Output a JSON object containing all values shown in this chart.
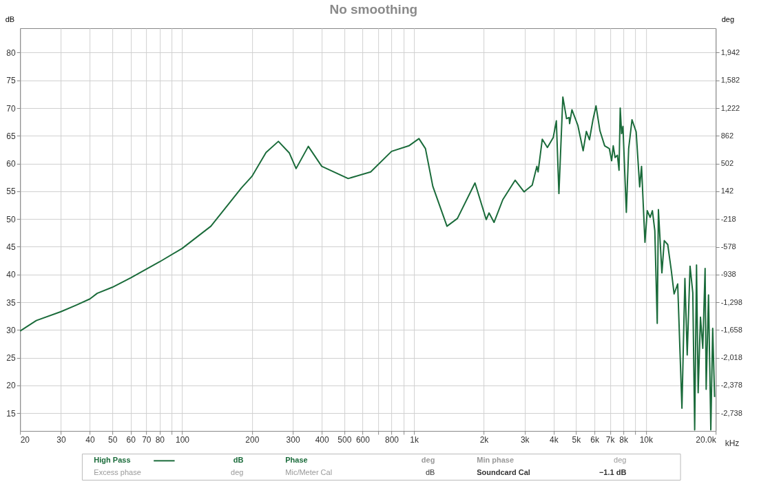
{
  "chart_data": {
    "type": "line",
    "title": "No smoothing",
    "ylabel": "dB",
    "y2label": "deg",
    "x": [
      20,
      23.5,
      30,
      35,
      40,
      43,
      50,
      60,
      80,
      100,
      133,
      180,
      200,
      230,
      260,
      290,
      310,
      350,
      400,
      520,
      650,
      800,
      950,
      1050,
      1120,
      1205,
      1387,
      1538,
      1832,
      2048,
      2106,
      2213,
      2415,
      2730,
      2982,
      3233,
      3385,
      3428,
      3574,
      3760,
      3984,
      4109,
      4215,
      4383,
      4547,
      4665,
      4687,
      4797,
      5086,
      5362,
      5535,
      5708,
      5911,
      6093,
      6336,
      6640,
      6953,
      7114,
      7229,
      7363,
      7536,
      7658,
      7748,
      7856,
      7960,
      8233,
      8426,
      8711,
      9078,
      9399,
      9575,
      9905,
      10135,
      10433,
      10665,
      10925,
      11190,
      11320,
      11720,
      12000,
      12420,
      12870,
      13230,
      13710,
      14300,
      14730,
      15070,
      15500,
      15930,
      16230,
      16530,
      16800,
      17190,
      17590,
      18000,
      18190,
      18620,
      19050,
      19410,
      19780
    ],
    "series": [
      {
        "name": "High Pass",
        "color": "#1a6b3a",
        "values": [
          29.8,
          31.7,
          33.3,
          34.5,
          35.6,
          36.6,
          37.7,
          39.4,
          42.3,
          44.7,
          48.7,
          55.6,
          57.7,
          62.0,
          64.0,
          61.9,
          59.1,
          63.1,
          59.5,
          57.3,
          58.5,
          62.2,
          63.2,
          64.5,
          62.7,
          55.9,
          48.7,
          50.1,
          56.5,
          49.9,
          51.1,
          49.4,
          53.5,
          57.0,
          54.9,
          56.1,
          59.5,
          58.5,
          64.4,
          62.9,
          64.7,
          67.7,
          54.6,
          72.0,
          68.1,
          68.3,
          67.2,
          69.7,
          66.9,
          62.3,
          65.8,
          64.3,
          67.9,
          70.4,
          65.9,
          63.2,
          62.7,
          60.5,
          63.2,
          61.1,
          61.5,
          58.8,
          70.0,
          65.4,
          66.7,
          51.2,
          62.7,
          67.9,
          65.7,
          55.8,
          59.5,
          45.8,
          51.5,
          50.3,
          51.5,
          47.9,
          31.2,
          51.7,
          40.3,
          46.1,
          45.4,
          40.7,
          36.5,
          38.3,
          15.9,
          39.3,
          25.5,
          41.5,
          36.7,
          12.0,
          41.7,
          18.7,
          32.3,
          26.7,
          41.1,
          19.3,
          36.3,
          12.0,
          30.3,
          17.9
        ]
      }
    ],
    "log": "x",
    "xlim": [
      20,
      20000
    ],
    "xticks": [
      20,
      30,
      40,
      50,
      60,
      70,
      80,
      {
        "value": 90,
        "label": null
      },
      100,
      200,
      300,
      400,
      500,
      600,
      {
        "value": 700,
        "label": null
      },
      800,
      {
        "value": 900,
        "label": null
      },
      {
        "value": 1000,
        "label": "1k"
      },
      {
        "value": 2000,
        "label": "2k"
      },
      {
        "value": 3000,
        "label": "3k"
      },
      {
        "value": 4000,
        "label": "4k"
      },
      {
        "value": 5000,
        "label": "5k"
      },
      {
        "value": 6000,
        "label": "6k"
      },
      {
        "value": 7000,
        "label": "7k"
      },
      {
        "value": 8000,
        "label": "8k"
      },
      {
        "value": 9000,
        "label": null
      },
      {
        "value": 10000,
        "label": "10k"
      },
      {
        "value": 20000,
        "label": "20.0k"
      }
    ],
    "xlabel": "kHz",
    "ylim": [
      11.8,
      84.4
    ],
    "yticks": [
      15,
      20,
      25,
      30,
      35,
      40,
      45,
      50,
      55,
      60,
      65,
      70,
      75,
      80
    ],
    "y2lim": [
      -2968,
      2259
    ],
    "y2ticks": [
      {
        "value": -2738,
        "label": "-2,738"
      },
      {
        "value": -2378,
        "label": "-2,378"
      },
      {
        "value": -2018,
        "label": "-2,018"
      },
      {
        "value": -1658,
        "label": "-1,658"
      },
      {
        "value": -1298,
        "label": "-1,298"
      },
      {
        "value": -938,
        "label": "-938"
      },
      {
        "value": -578,
        "label": "-578"
      },
      {
        "value": -218,
        "label": "-218"
      },
      {
        "value": 142,
        "label": "142"
      },
      {
        "value": 502,
        "label": "502"
      },
      {
        "value": 862,
        "label": "862"
      },
      {
        "value": 1222,
        "label": "1,222"
      },
      {
        "value": 1582,
        "label": "1,582"
      },
      {
        "value": 1942,
        "label": "1,942"
      }
    ],
    "grid": true,
    "legend": "bottom",
    "line_style": "solid",
    "marker": "none",
    "annotations": [
      "dB",
      "Phase",
      "deg",
      "Min phase",
      "deg",
      "Excess phase",
      "deg",
      "Mic/Meter Cal",
      "dB",
      "Soundcard Cal",
      "−1.1 dB"
    ]
  }
}
